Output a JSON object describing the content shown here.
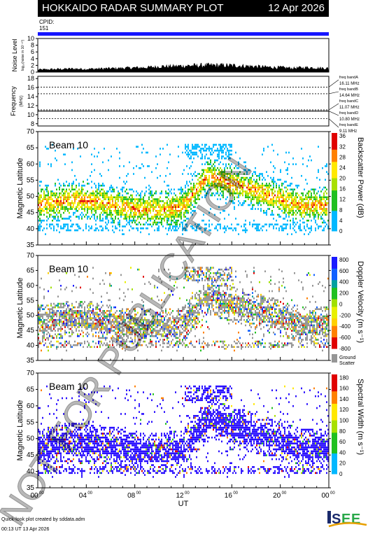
{
  "header": {
    "title": "HOKKAIDO RADAR SUMMARY PLOT",
    "date": "12 Apr 2026"
  },
  "cpid": {
    "label": "CPID:",
    "value": "151"
  },
  "watermark": "NOT FOR PUBLICATION",
  "footer": {
    "line1": "Quick-look plot created by sddata.adm",
    "line2": "00:13 UT 13 Apr 2026"
  },
  "logo": {
    "text": "ISEE"
  },
  "colors": {
    "header_bg": "#000000",
    "cpid_bar": "#1515ff",
    "ground_scatter": "#969696"
  },
  "chart_data": [
    {
      "type": "area",
      "ylabel": "Noise Level",
      "ylabel2": "log₁₀(noise in 10⁻¹⁰)",
      "y_ticks": [
        "0",
        "2",
        "4",
        "6",
        "8",
        "10"
      ],
      "ylim": [
        0,
        10
      ],
      "x": [
        0,
        1,
        2,
        3,
        4,
        5,
        6,
        7,
        8,
        9,
        10,
        11,
        12,
        13,
        14,
        15,
        16,
        17,
        18,
        19,
        20,
        21,
        22,
        23,
        24
      ],
      "values": [
        0.8,
        0.9,
        1.0,
        1.1,
        1.0,
        1.1,
        1.2,
        1.3,
        1.4,
        1.5,
        1.8,
        1.9,
        2.0,
        2.1,
        2.2,
        2.2,
        2.1,
        2.0,
        1.8,
        1.6,
        1.5,
        1.3,
        1.5,
        1.4,
        1.2
      ]
    },
    {
      "type": "line",
      "ylabel": "Frequency",
      "ylabel2": "(MHz)",
      "y_ticks": [
        "8",
        "10",
        "12",
        "14",
        "16",
        "18"
      ],
      "ylim": [
        7.5,
        18.5
      ],
      "frequency_hz": 10.8,
      "bands": [
        {
          "name": "freq bandA",
          "value": "16.11 MHz",
          "freq": 16.11
        },
        {
          "name": "freq bandB",
          "value": "14.64 MHz",
          "freq": 14.64
        },
        {
          "name": "freq bandC",
          "value": "11.07 MHz",
          "freq": 11.07
        },
        {
          "name": "freq bandD",
          "value": "10.80 MHz",
          "freq": 10.8
        },
        {
          "name": "freq bandE",
          "value": "9.11 MHz",
          "freq": 9.11
        }
      ]
    },
    {
      "type": "heatmap",
      "beam_label": "Beam 10",
      "ylabel": "Magnetic Latitude",
      "y_ticks": [
        "35",
        "40",
        "45",
        "50",
        "55",
        "60",
        "65",
        "70"
      ],
      "ylim": [
        35,
        70
      ],
      "colorbar_label": "Backscatter Power (dB)",
      "colorbar_ticks": [
        "0",
        "4",
        "8",
        "12",
        "16",
        "20",
        "24",
        "28",
        "32",
        "36"
      ]
    },
    {
      "type": "heatmap",
      "beam_label": "Beam 10",
      "ylabel": "Magnetic Latitude",
      "y_ticks": [
        "35",
        "40",
        "45",
        "50",
        "55",
        "60",
        "65",
        "70"
      ],
      "ylim": [
        35,
        70
      ],
      "colorbar_label": "Doppler Velocity (m s⁻¹)",
      "colorbar_ticks": [
        "-800",
        "-600",
        "-400",
        "-200",
        "0",
        "200",
        "400",
        "600",
        "800"
      ],
      "ground_scatter_label": [
        "Ground",
        "Scatter"
      ]
    },
    {
      "type": "heatmap",
      "beam_label": "Beam 10",
      "ylabel": "Magnetic Latitude",
      "y_ticks": [
        "35",
        "40",
        "45",
        "50",
        "55",
        "60",
        "65",
        "70"
      ],
      "ylim": [
        35,
        70
      ],
      "colorbar_label": "Spectral Width (m s⁻¹)",
      "colorbar_ticks": [
        "0",
        "20",
        "40",
        "60",
        "80",
        "100",
        "120",
        "140",
        "160",
        "180"
      ],
      "xlabel": "UT",
      "x_ticks": [
        "00",
        "04",
        "08",
        "12",
        "16",
        "20",
        "00"
      ],
      "x_tick_sup": "00"
    }
  ]
}
